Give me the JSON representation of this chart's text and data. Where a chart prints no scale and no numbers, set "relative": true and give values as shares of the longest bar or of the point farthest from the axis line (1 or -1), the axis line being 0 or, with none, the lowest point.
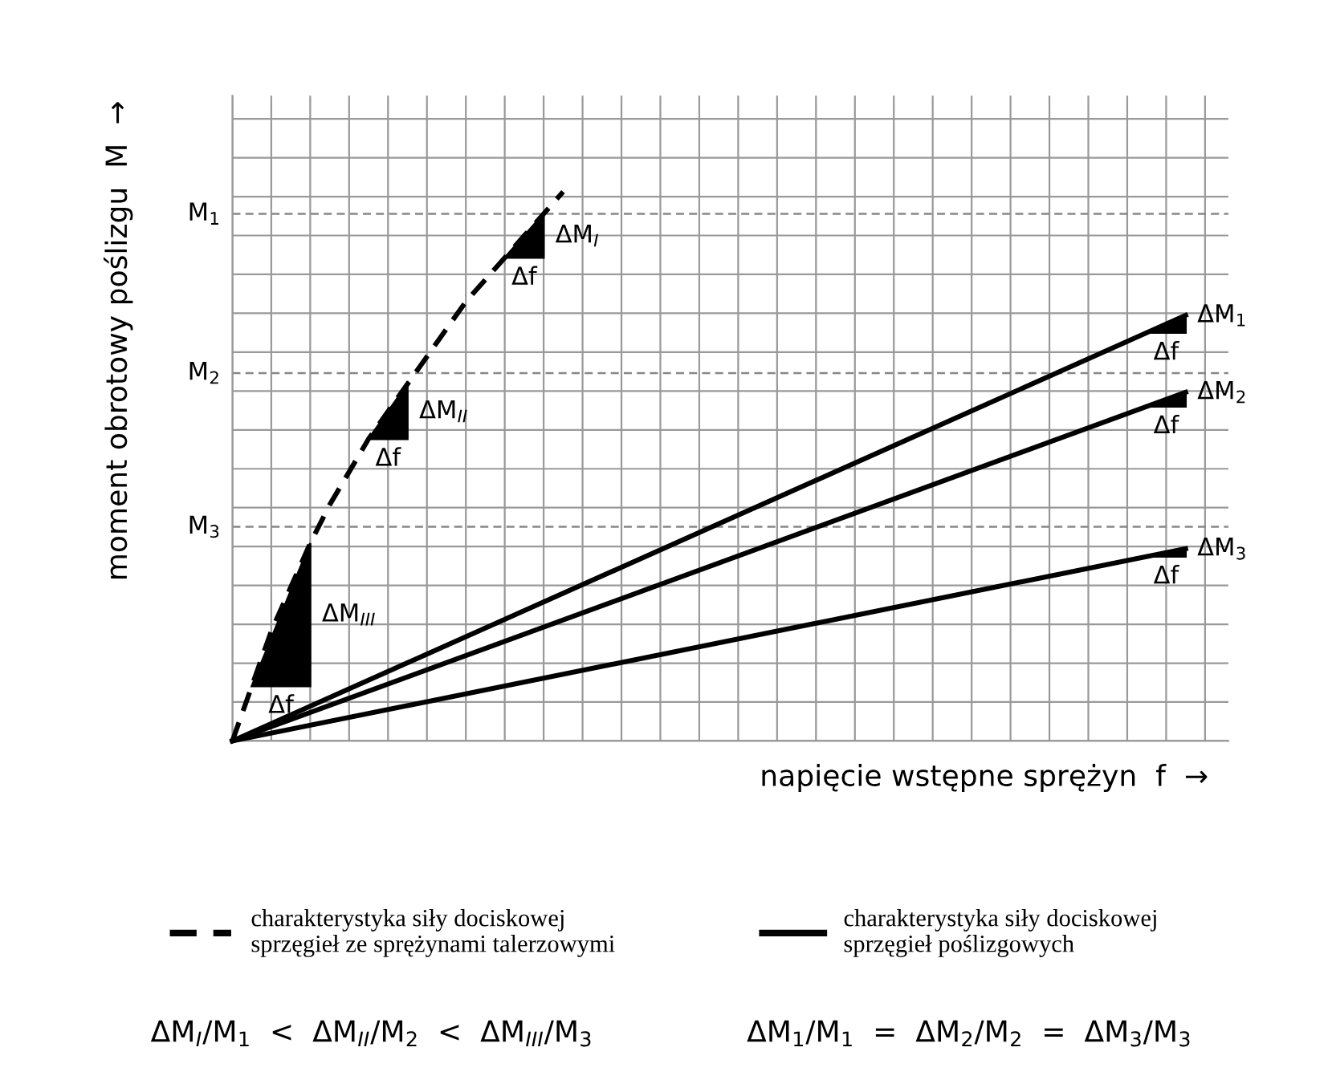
{
  "chart_data": {
    "type": "line",
    "relative": true,
    "xlabel": "napięcie wstępne sprężyn  f  →",
    "ylabel": "moment obrotowy poślizgu  M  →",
    "categories": [
      null,
      null,
      null,
      null,
      null,
      null,
      null,
      null,
      null,
      null,
      null,
      null,
      null,
      null,
      null,
      null,
      null,
      null,
      null,
      null,
      null,
      null,
      null,
      null,
      null,
      null,
      null,
      null,
      null,
      null,
      null,
      null,
      null,
      null,
      null,
      null,
      null,
      null,
      null,
      null,
      null,
      null,
      null,
      null,
      null,
      null,
      null,
      null,
      null,
      null
    ],
    "series": [
      {
        "name": "charakterystyka siły dociskowej\nsprzęgieł ze sprężynami talerzowymi",
        "color": "#000000",
        "line_style": "dashed",
        "values": [
          0,
          0.1,
          0.2,
          0.28,
          0.36,
          0.43,
          0.49,
          0.55,
          0.6,
          0.65,
          0.7,
          0.75,
          0.8,
          0.84,
          0.88,
          0.92,
          0.96,
          1.0,
          null,
          null,
          null,
          null,
          null,
          null,
          null,
          null,
          null,
          null,
          null,
          null,
          null,
          null,
          null,
          null,
          null,
          null,
          null,
          null,
          null,
          null,
          null,
          null,
          null,
          null,
          null,
          null,
          null,
          null,
          null,
          null
        ]
      },
      {
        "name": "charakterystyka siły dociskowej\nsprzęgieł poślizgowych",
        "color": "#000000",
        "line_style": "solid",
        "values": [
          0,
          null,
          null,
          null,
          null,
          null,
          null,
          null,
          null,
          null,
          null,
          null,
          null,
          null,
          null,
          null,
          null,
          null,
          null,
          null,
          null,
          null,
          null,
          null,
          null,
          null,
          null,
          null,
          null,
          null,
          null,
          null,
          null,
          null,
          null,
          null,
          null,
          null,
          null,
          null,
          null,
          null,
          null,
          null,
          null,
          null,
          null,
          null,
          null,
          0.775
        ]
      },
      {
        "color": "#000000",
        "line_style": "solid",
        "values": [
          0,
          null,
          null,
          null,
          null,
          null,
          null,
          null,
          null,
          null,
          null,
          null,
          null,
          null,
          null,
          null,
          null,
          null,
          null,
          null,
          null,
          null,
          null,
          null,
          null,
          null,
          null,
          null,
          null,
          null,
          null,
          null,
          null,
          null,
          null,
          null,
          null,
          null,
          null,
          null,
          null,
          null,
          null,
          null,
          null,
          null,
          null,
          null,
          null,
          0.635
        ]
      },
      {
        "color": "#000000",
        "line_style": "solid",
        "values": [
          0,
          null,
          null,
          null,
          null,
          null,
          null,
          null,
          null,
          null,
          null,
          null,
          null,
          null,
          null,
          null,
          null,
          null,
          null,
          null,
          null,
          null,
          null,
          null,
          null,
          null,
          null,
          null,
          null,
          null,
          null,
          null,
          null,
          null,
          null,
          null,
          null,
          null,
          null,
          null,
          null,
          null,
          null,
          null,
          null,
          null,
          null,
          null,
          null,
          0.35
        ]
      }
    ],
    "ref_lines": [
      {
        "axis": "y",
        "value": 0.96,
        "label": "M$_{1}$",
        "color": "#888888",
        "line_style": "dashed"
      },
      {
        "axis": "y",
        "value": 0.67,
        "label": "M$_{2}$",
        "color": "#888888",
        "line_style": "dashed"
      },
      {
        "axis": "y",
        "value": 0.39,
        "label": "M$_{3}$",
        "color": "#888888",
        "line_style": "dashed"
      }
    ],
    "annotations": [
      "ΔM$_{I}$",
      "Δf",
      "ΔM$_{II}$",
      "Δf",
      "ΔM$_{III}$",
      "Δf",
      "ΔM$_{1}$",
      "Δf",
      "ΔM$_{2}$",
      "Δf",
      "ΔM$_{3}$",
      "Δf",
      "ΔM$_{I}$/M$_{1}$  <  ΔM$_{II}$/M$_{2}$  <  ΔM$_{III}$/M$_{3}$",
      "ΔM$_{1}$/M$_{1}$  =  ΔM$_{2}$/M$_{2}$  =  ΔM$_{3}$/M$_{3}$"
    ],
    "grid": true,
    "legend": "bottom",
    "marker": "none"
  }
}
